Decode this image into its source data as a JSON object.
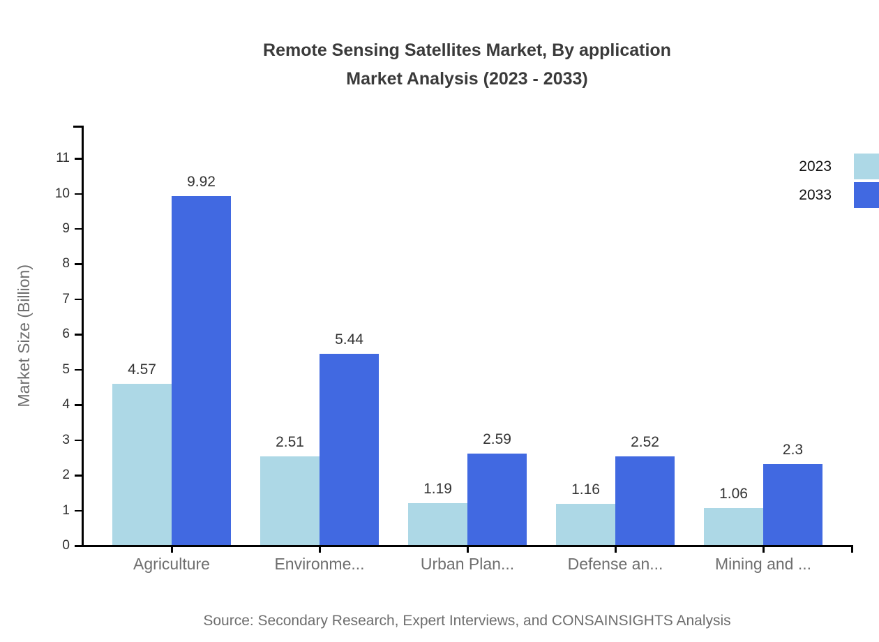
{
  "title": {
    "line1": "Remote Sensing Satellites Market, By application",
    "line2": "Market Analysis (2023 - 2033)"
  },
  "legend": [
    {
      "label": "2023",
      "color": "#add8e6"
    },
    {
      "label": "2033",
      "color": "#4169e1"
    }
  ],
  "source": "Source: Secondary Research, Expert Interviews, and CONSAINSIGHTS Analysis",
  "colors": {
    "series_2023": "#add8e6",
    "series_2033": "#4169e1",
    "axis": "#000000",
    "title_text": "#3a3a3a",
    "muted_text": "#6e6e6e",
    "value_text": "#333333"
  },
  "chart_data": {
    "type": "bar",
    "title": "Remote Sensing Satellites Market, By application Market Analysis (2023 - 2033)",
    "xlabel": "",
    "ylabel": "Market Size (Billion)",
    "categories": [
      "Agriculture",
      "Environme...",
      "Urban Plan...",
      "Defense an...",
      "Mining and ..."
    ],
    "series": [
      {
        "name": "2023",
        "color": "#add8e6",
        "values": [
          4.57,
          2.51,
          1.19,
          1.16,
          1.06
        ]
      },
      {
        "name": "2033",
        "color": "#4169e1",
        "values": [
          9.92,
          5.44,
          2.59,
          2.52,
          2.3
        ]
      }
    ],
    "value_labels": {
      "2023": [
        "4.57",
        "2.51",
        "1.19",
        "1.16",
        "1.06"
      ],
      "2033": [
        "9.92",
        "5.44",
        "2.59",
        "2.52",
        "2.3"
      ]
    },
    "ylim": [
      0,
      11.9
    ],
    "yticks": [
      0,
      1,
      2,
      3,
      4,
      5,
      6,
      7,
      8,
      9,
      10,
      11
    ],
    "grid": false,
    "legend_position": "top-right"
  }
}
